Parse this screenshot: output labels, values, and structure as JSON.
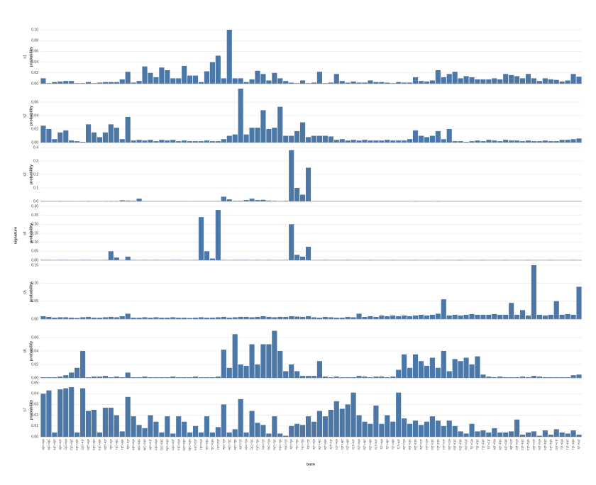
{
  "chart_data": {
    "type": "bar",
    "color": "#4c78a8",
    "row_title": "signature",
    "x_title": "term",
    "categories": [
      "A[C>A]A",
      "A[C>A]C",
      "A[C>A]G",
      "A[C>A]T",
      "C[C>A]A",
      "C[C>A]C",
      "C[C>A]G",
      "C[C>A]T",
      "G[C>A]A",
      "G[C>A]C",
      "G[C>A]G",
      "G[C>A]T",
      "T[C>A]A",
      "T[C>A]C",
      "T[C>A]G",
      "T[C>A]T",
      "A[C>G]A",
      "A[C>G]C",
      "A[C>G]G",
      "A[C>G]T",
      "C[C>G]A",
      "C[C>G]C",
      "C[C>G]G",
      "C[C>G]T",
      "G[C>G]A",
      "G[C>G]C",
      "G[C>G]G",
      "G[C>G]T",
      "T[C>G]A",
      "T[C>G]C",
      "T[C>G]G",
      "T[C>G]T",
      "A[C>T]A",
      "A[C>T]C",
      "A[C>T]G",
      "A[C>T]T",
      "C[C>T]A",
      "C[C>T]C",
      "C[C>T]G",
      "C[C>T]T",
      "G[C>T]A",
      "G[C>T]C",
      "G[C>T]G",
      "G[C>T]T",
      "T[C>T]A",
      "T[C>T]C",
      "T[C>T]G",
      "T[C>T]T",
      "A[T>A]A",
      "A[T>A]C",
      "A[T>A]G",
      "A[T>A]T",
      "C[T>A]A",
      "C[T>A]C",
      "C[T>A]G",
      "C[T>A]T",
      "G[T>A]A",
      "G[T>A]C",
      "G[T>A]G",
      "G[T>A]T",
      "T[T>A]A",
      "T[T>A]C",
      "T[T>A]G",
      "T[T>A]T",
      "A[T>C]A",
      "A[T>C]C",
      "A[T>C]G",
      "A[T>C]T",
      "C[T>C]A",
      "C[T>C]C",
      "C[T>C]G",
      "C[T>C]T",
      "G[T>C]A",
      "G[T>C]C",
      "G[T>C]G",
      "G[T>C]T",
      "T[T>C]A",
      "T[T>C]C",
      "T[T>C]G",
      "T[T>C]T",
      "A[T>G]A",
      "A[T>G]C",
      "A[T>G]G",
      "A[T>G]T",
      "C[T>G]A",
      "C[T>G]C",
      "C[T>G]G",
      "C[T>G]T",
      "G[T>G]A",
      "G[T>G]C",
      "G[T>G]G",
      "G[T>G]T",
      "T[T>G]A",
      "T[T>G]C",
      "T[T>G]G",
      "T[T>G]T"
    ],
    "facets": [
      {
        "label": "s1",
        "y_label": "probability",
        "ylim": [
          0,
          0.1
        ],
        "yticks": [
          {
            "value": 0,
            "label": "0.00"
          },
          {
            "value": 0.02,
            "label": "0.02"
          },
          {
            "value": 0.04,
            "label": "0.04"
          },
          {
            "value": 0.06,
            "label": "0.06"
          },
          {
            "value": 0.08,
            "label": "0.08"
          },
          {
            "value": 0.1,
            "label": "0.10"
          }
        ],
        "values": [
          0.01,
          0.001,
          0.003,
          0.004,
          0.005,
          0.005,
          0.001,
          0.001,
          0.003,
          0.001,
          0.002,
          0.003,
          0.003,
          0.003,
          0.008,
          0.022,
          0.002,
          0.005,
          0.032,
          0.02,
          0.012,
          0.03,
          0.025,
          0.01,
          0.01,
          0.033,
          0.015,
          0.015,
          0.003,
          0.023,
          0.04,
          0.052,
          0.01,
          0.1,
          0.01,
          0.01,
          0.003,
          0.008,
          0.024,
          0.018,
          0.006,
          0.02,
          0.01,
          0.005,
          0.002,
          0.001,
          0.006,
          0.001,
          0.002,
          0.022,
          0.001,
          0.002,
          0.018,
          0.005,
          0.002,
          0.004,
          0.002,
          0.002,
          0.006,
          0.003,
          0.003,
          0.002,
          0.001,
          0.003,
          0.002,
          0.002,
          0.012,
          0.005,
          0.004,
          0.006,
          0.025,
          0.012,
          0.018,
          0.022,
          0.01,
          0.014,
          0.012,
          0.008,
          0.008,
          0.008,
          0.01,
          0.008,
          0.018,
          0.016,
          0.014,
          0.01,
          0.018,
          0.01,
          0.005,
          0.01,
          0.008,
          0.007,
          0.004,
          0.006,
          0.018,
          0.013
        ]
      },
      {
        "label": "s2",
        "y_label": "probability",
        "ylim": [
          0,
          0.08
        ],
        "yticks": [
          {
            "value": 0,
            "label": "0.00"
          },
          {
            "value": 0.02,
            "label": "0.02"
          },
          {
            "value": 0.04,
            "label": "0.04"
          },
          {
            "value": 0.06,
            "label": "0.06"
          }
        ],
        "values": [
          0.025,
          0.02,
          0.005,
          0.015,
          0.018,
          0.003,
          0.002,
          0.001,
          0.027,
          0.015,
          0.008,
          0.015,
          0.027,
          0.022,
          0.005,
          0.038,
          0.003,
          0.004,
          0.003,
          0.004,
          0.002,
          0.004,
          0.003,
          0.004,
          0.002,
          0.003,
          0.002,
          0.002,
          0.002,
          0.003,
          0.002,
          0.002,
          0.005,
          0.01,
          0.012,
          0.08,
          0.012,
          0.022,
          0.022,
          0.048,
          0.02,
          0.022,
          0.053,
          0.01,
          0.01,
          0.017,
          0.03,
          0.008,
          0.01,
          0.01,
          0.01,
          0.009,
          0.004,
          0.005,
          0.003,
          0.004,
          0.003,
          0.004,
          0.003,
          0.003,
          0.003,
          0.004,
          0.003,
          0.003,
          0.003,
          0.005,
          0.018,
          0.01,
          0.008,
          0.01,
          0.017,
          0.005,
          0.02,
          0.002,
          0.002,
          0.001,
          0.002,
          0.003,
          0.002,
          0.004,
          0.003,
          0.002,
          0.004,
          0.003,
          0.003,
          0.002,
          0.003,
          0.002,
          0.002,
          0.003,
          0.002,
          0.002,
          0.004,
          0.004,
          0.005,
          0.006
        ]
      },
      {
        "label": "s3",
        "y_label": "probability",
        "ylim": [
          0,
          0.4
        ],
        "yticks": [
          {
            "value": 0,
            "label": "0.0"
          },
          0.1,
          0.2,
          0.3,
          0.4
        ],
        "values": [
          0.003,
          0.002,
          0.002,
          0.003,
          0.002,
          0.002,
          0.001,
          0.002,
          0.003,
          0.002,
          0.002,
          0.003,
          0.003,
          0.003,
          0.008,
          0.006,
          0.005,
          0.02,
          0.002,
          0.002,
          0.002,
          0.002,
          0.002,
          0.002,
          0.002,
          0.002,
          0.001,
          0.002,
          0.002,
          0.002,
          0.002,
          0.003,
          0.035,
          0.015,
          0.004,
          0.004,
          0.01,
          0.02,
          0.01,
          0.012,
          0.006,
          0.004,
          0.003,
          0.004,
          0.38,
          0.1,
          0.05,
          0.25,
          0.002,
          0.002,
          0.002,
          0.002,
          0.002,
          0.002,
          0.002,
          0.002,
          0.002,
          0.002,
          0.002,
          0.002,
          0.002,
          0.002,
          0.002,
          0.002,
          0.002,
          0.002,
          0.003,
          0.002,
          0.002,
          0.002,
          0.003,
          0.002,
          0.002,
          0.002,
          0.002,
          0.002,
          0.002,
          0.002,
          0.002,
          0.002,
          0.002,
          0.002,
          0.002,
          0.002,
          0.002,
          0.002,
          0.002,
          0.002,
          0.002,
          0.002,
          0.002,
          0.002,
          0.002,
          0.002,
          0.002,
          0.002
        ]
      },
      {
        "label": "s4",
        "y_label": "probability",
        "ylim": [
          0,
          0.3
        ],
        "yticks": [
          {
            "value": 0,
            "label": "0.00"
          },
          {
            "value": 0.05,
            "label": "0.05"
          },
          {
            "value": 0.1,
            "label": "0.10"
          },
          {
            "value": 0.15,
            "label": "0.15"
          },
          {
            "value": 0.2,
            "label": "0.20"
          },
          {
            "value": 0.25,
            "label": "0.25"
          },
          {
            "value": 0.3,
            "label": "0.30"
          }
        ],
        "values": [
          0.002,
          0.002,
          0.001,
          0.002,
          0.002,
          0.001,
          0.001,
          0.002,
          0.002,
          0.001,
          0.001,
          0.002,
          0.05,
          0.015,
          0.002,
          0.02,
          0.002,
          0.001,
          0.002,
          0.001,
          0.002,
          0.001,
          0.001,
          0.002,
          0.002,
          0.001,
          0.001,
          0.002,
          0.24,
          0.05,
          0.01,
          0.28,
          0.002,
          0.001,
          0.002,
          0.002,
          0.002,
          0.001,
          0.002,
          0.001,
          0.002,
          0.001,
          0.001,
          0.002,
          0.2,
          0.03,
          0.02,
          0.075,
          0.001,
          0.001,
          0.002,
          0.001,
          0.001,
          0.001,
          0.002,
          0.001,
          0.001,
          0.001,
          0.002,
          0.001,
          0.001,
          0.001,
          0.002,
          0.001,
          0.001,
          0.001,
          0.002,
          0.001,
          0.001,
          0.001,
          0.002,
          0.001,
          0.001,
          0.001,
          0.002,
          0.001,
          0.001,
          0.001,
          0.002,
          0.001,
          0.001,
          0.001,
          0.002,
          0.001,
          0.001,
          0.001,
          0.002,
          0.001,
          0.001,
          0.001,
          0.002,
          0.001,
          0.001,
          0.001,
          0.002,
          0.001
        ]
      },
      {
        "label": "s5",
        "y_label": "probability",
        "ylim": [
          0,
          0.15
        ],
        "yticks": [
          {
            "value": 0,
            "label": "0.00"
          },
          {
            "value": 0.05,
            "label": "0.05"
          },
          {
            "value": 0.1,
            "label": "0.10"
          },
          {
            "value": 0.15,
            "label": "0.15"
          }
        ],
        "values": [
          0.008,
          0.006,
          0.004,
          0.005,
          0.005,
          0.004,
          0.003,
          0.005,
          0.006,
          0.004,
          0.004,
          0.005,
          0.006,
          0.005,
          0.008,
          0.015,
          0.004,
          0.004,
          0.005,
          0.004,
          0.005,
          0.004,
          0.004,
          0.005,
          0.004,
          0.004,
          0.003,
          0.004,
          0.005,
          0.004,
          0.004,
          0.005,
          0.006,
          0.004,
          0.005,
          0.006,
          0.006,
          0.005,
          0.006,
          0.008,
          0.006,
          0.005,
          0.006,
          0.006,
          0.008,
          0.007,
          0.006,
          0.008,
          0.005,
          0.004,
          0.006,
          0.005,
          0.004,
          0.004,
          0.006,
          0.005,
          0.015,
          0.006,
          0.008,
          0.006,
          0.01,
          0.008,
          0.01,
          0.008,
          0.01,
          0.008,
          0.01,
          0.012,
          0.01,
          0.012,
          0.015,
          0.055,
          0.01,
          0.012,
          0.01,
          0.012,
          0.014,
          0.012,
          0.012,
          0.012,
          0.014,
          0.012,
          0.012,
          0.045,
          0.012,
          0.025,
          0.01,
          0.15,
          0.012,
          0.01,
          0.012,
          0.05,
          0.012,
          0.014,
          0.012,
          0.09
        ]
      },
      {
        "label": "s6",
        "y_label": "probability",
        "ylim": [
          0,
          0.08
        ],
        "yticks": [
          {
            "value": 0,
            "label": "0.00"
          },
          {
            "value": 0.02,
            "label": "0.02"
          },
          {
            "value": 0.04,
            "label": "0.04"
          },
          {
            "value": 0.06,
            "label": "0.06"
          }
        ],
        "values": [
          0.001,
          0.001,
          0.001,
          0.002,
          0.004,
          0.008,
          0.015,
          0.04,
          0.001,
          0.002,
          0.002,
          0.003,
          0.001,
          0.002,
          0.001,
          0.008,
          0.001,
          0.001,
          0.002,
          0.001,
          0.001,
          0.001,
          0.001,
          0.002,
          0.001,
          0.001,
          0.001,
          0.002,
          0.001,
          0.001,
          0.001,
          0.002,
          0.042,
          0.015,
          0.065,
          0.02,
          0.018,
          0.05,
          0.02,
          0.05,
          0.05,
          0.07,
          0.04,
          0.01,
          0.02,
          0.01,
          0.003,
          0.003,
          0.003,
          0.025,
          0.002,
          0.001,
          0.002,
          0.001,
          0.001,
          0.001,
          0.003,
          0.002,
          0.001,
          0.002,
          0.002,
          0.001,
          0.002,
          0.012,
          0.035,
          0.015,
          0.035,
          0.025,
          0.018,
          0.03,
          0.015,
          0.04,
          0.01,
          0.028,
          0.025,
          0.03,
          0.02,
          0.032,
          0.005,
          0.002,
          0.001,
          0.002,
          0.001,
          0.001,
          0.001,
          0.002,
          0.001,
          0.003,
          0.002,
          0.001,
          0.001,
          0.001,
          0.001,
          0.001,
          0.004,
          0.005
        ]
      },
      {
        "label": "s7",
        "y_label": "probability",
        "ylim": [
          0,
          0.05
        ],
        "yticks": [
          {
            "value": 0,
            "label": "0.00"
          },
          {
            "value": 0.01,
            "label": "0.01"
          },
          {
            "value": 0.02,
            "label": "0.02"
          },
          {
            "value": 0.03,
            "label": "0.03"
          },
          {
            "value": 0.04,
            "label": "0.04"
          },
          {
            "value": 0.05,
            "label": "0.05"
          }
        ],
        "values": [
          0.04,
          0.043,
          0.004,
          0.044,
          0.045,
          0.046,
          0.004,
          0.045,
          0.024,
          0.025,
          0.004,
          0.027,
          0.027,
          0.02,
          0.005,
          0.037,
          0.019,
          0.011,
          0.008,
          0.02,
          0.014,
          0.004,
          0.019,
          0.003,
          0.019,
          0.014,
          0.004,
          0.01,
          0.004,
          0.019,
          0.004,
          0.009,
          0.03,
          0.004,
          0.007,
          0.035,
          0.004,
          0.024,
          0.013,
          0.011,
          0.003,
          0.019,
          0.003,
          0.001,
          0.01,
          0.012,
          0.011,
          0.019,
          0.014,
          0.024,
          0.019,
          0.025,
          0.033,
          0.026,
          0.03,
          0.041,
          0.02,
          0.014,
          0.012,
          0.029,
          0.012,
          0.02,
          0.014,
          0.041,
          0.017,
          0.012,
          0.015,
          0.011,
          0.014,
          0.019,
          0.015,
          0.01,
          0.015,
          0.01,
          0.005,
          0.003,
          0.012,
          0.005,
          0.006,
          0.004,
          0.008,
          0.004,
          0.004,
          0.005,
          0.016,
          0.002,
          0.004,
          0.005,
          0.001,
          0.006,
          0.002,
          0.007,
          0.004,
          0.003,
          0.006,
          0.002
        ]
      }
    ]
  }
}
